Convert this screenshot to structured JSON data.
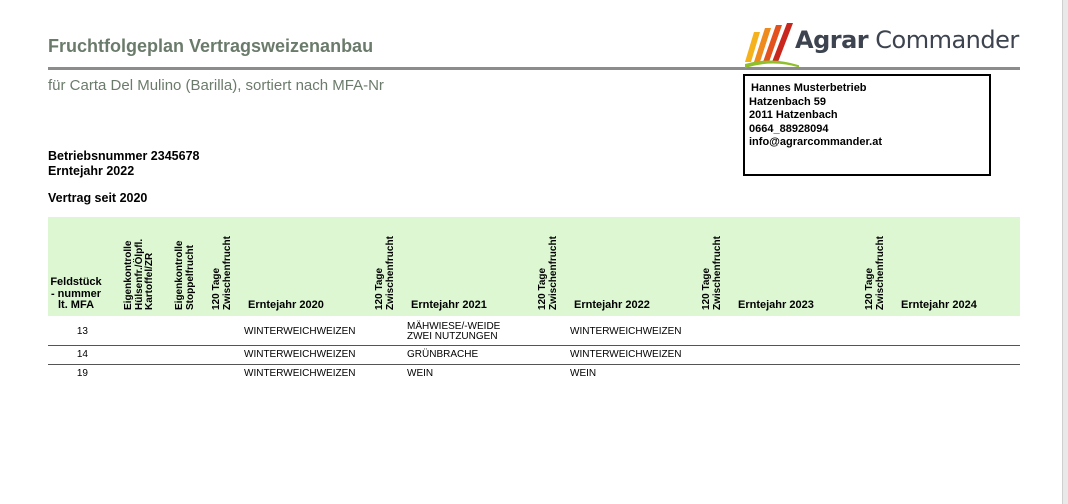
{
  "header": {
    "title": "Fruchtfolgeplan Vertragsweizenanbau",
    "subtitle": "für Carta Del Mulino (Barilla), sortiert nach MFA-Nr"
  },
  "logo": {
    "word1": "Agrar",
    "word2": " Commander",
    "colors": [
      "#f5b21c",
      "#ef8a1d",
      "#e3521d",
      "#c9261d",
      "#8fbf2a"
    ]
  },
  "address": {
    "lines": [
      "Hannes Musterbetrieb",
      "Hatzenbach 59",
      "2011 Hatzenbach",
      "0664_88928094",
      "info@agrarcommander.at"
    ]
  },
  "info": {
    "betriebsnummer": "Betriebsnummer 2345678",
    "erntejahr": "Erntejahr 2022",
    "vertrag": "Vertrag seit 2020"
  },
  "table": {
    "header_bg": "#dcf7d2",
    "feldstueck_label": "Feldstück - nummer lt. MFA",
    "eigen_huelsen": [
      "Eigenkontrolle",
      "Hülsenfr./Ölpfl.",
      "Kartoffel/ZR"
    ],
    "eigen_stoppel": [
      "Eigenkontrolle",
      "Stoppelfrucht"
    ],
    "zwischen": [
      "120 Tage",
      "Zwischenfrucht"
    ],
    "years": [
      "Erntejahr 2020",
      "Erntejahr 2021",
      "Erntejahr 2022",
      "Erntejahr 2023",
      "Erntejahr 2024"
    ],
    "rows": [
      {
        "nr": "13",
        "y2020": "WINTERWEICHWEIZEN",
        "y2021a": "MÄHWIESE/-WEIDE",
        "y2021b": "ZWEI NUTZUNGEN",
        "y2022": "WINTERWEICHWEIZEN"
      },
      {
        "nr": "14",
        "y2020": "WINTERWEICHWEIZEN",
        "y2021a": "GRÜNBRACHE",
        "y2021b": "",
        "y2022": "WINTERWEICHWEIZEN"
      },
      {
        "nr": "19",
        "y2020": "WINTERWEICHWEIZEN",
        "y2021a": "WEIN",
        "y2021b": "",
        "y2022": "WEIN"
      }
    ]
  }
}
